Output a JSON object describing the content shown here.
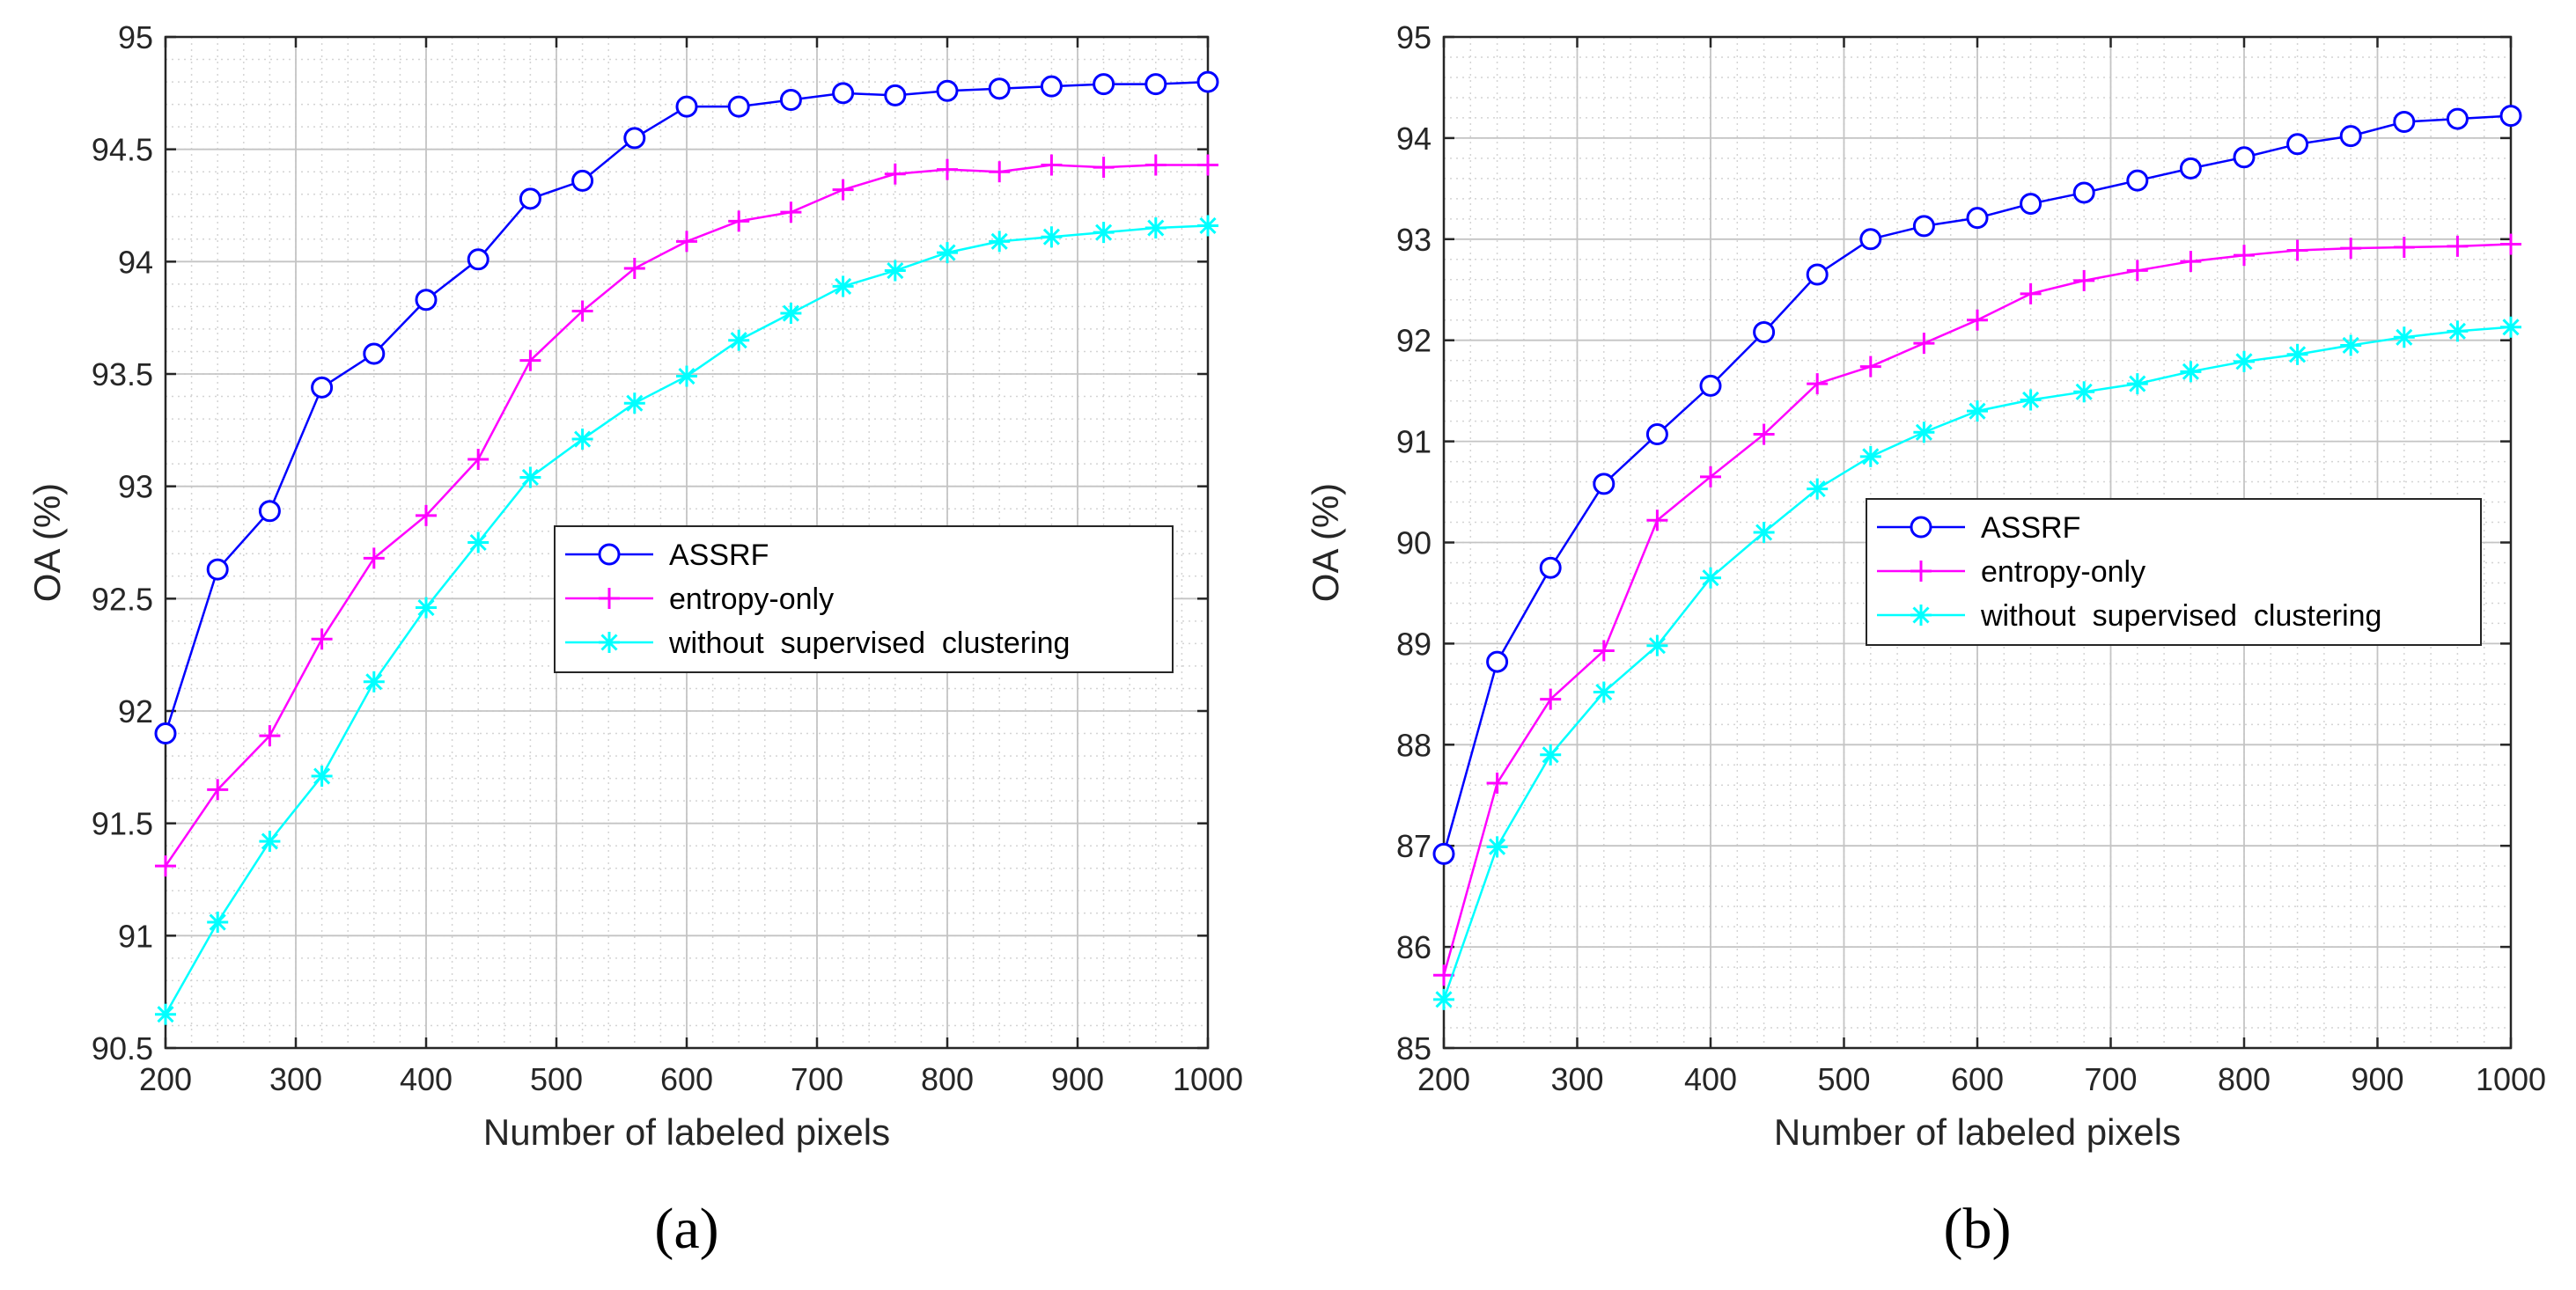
{
  "chart_data": [
    {
      "type": "line",
      "panel_label": "(a)",
      "xlabel": "Number of labeled pixels",
      "ylabel": "OA (%)",
      "xlim": [
        200,
        1000
      ],
      "ylim": [
        90.5,
        95
      ],
      "xticks": [
        200,
        300,
        400,
        500,
        600,
        700,
        800,
        900,
        1000
      ],
      "yticks": [
        90.5,
        91,
        91.5,
        92,
        92.5,
        93,
        93.5,
        94,
        94.5,
        95
      ],
      "grid": true,
      "legend_position": "middle-right",
      "x": [
        200,
        240,
        280,
        320,
        360,
        400,
        440,
        480,
        520,
        560,
        600,
        640,
        680,
        720,
        760,
        800,
        840,
        880,
        920,
        960,
        1000
      ],
      "series": [
        {
          "name": "ASSRF",
          "color": "#0000ff",
          "marker": "circle",
          "values": [
            91.9,
            92.63,
            92.89,
            93.44,
            93.59,
            93.83,
            94.01,
            94.28,
            94.36,
            94.55,
            94.69,
            94.69,
            94.72,
            94.75,
            94.74,
            94.76,
            94.77,
            94.78,
            94.79,
            94.79,
            94.8
          ]
        },
        {
          "name": "entropy-only",
          "color": "#ff00ff",
          "marker": "plus",
          "values": [
            91.31,
            91.65,
            91.89,
            92.32,
            92.68,
            92.87,
            93.12,
            93.56,
            93.78,
            93.97,
            94.09,
            94.18,
            94.22,
            94.32,
            94.39,
            94.41,
            94.4,
            94.43,
            94.42,
            94.43,
            94.43
          ]
        },
        {
          "name": "without  supervised  clustering",
          "color": "#00ffff",
          "marker": "asterisk",
          "values": [
            90.65,
            91.06,
            91.42,
            91.71,
            92.13,
            92.46,
            92.75,
            93.04,
            93.21,
            93.37,
            93.49,
            93.65,
            93.77,
            93.89,
            93.96,
            94.04,
            94.09,
            94.11,
            94.13,
            94.15,
            94.16
          ]
        }
      ]
    },
    {
      "type": "line",
      "panel_label": "(b)",
      "xlabel": "Number of labeled pixels",
      "ylabel": "OA (%)",
      "xlim": [
        200,
        1000
      ],
      "ylim": [
        85,
        95
      ],
      "xticks": [
        200,
        300,
        400,
        500,
        600,
        700,
        800,
        900,
        1000
      ],
      "yticks": [
        85,
        86,
        87,
        88,
        89,
        90,
        91,
        92,
        93,
        94,
        95
      ],
      "grid": true,
      "legend_position": "middle-right",
      "x": [
        200,
        240,
        280,
        320,
        360,
        400,
        440,
        480,
        520,
        560,
        600,
        640,
        680,
        720,
        760,
        800,
        840,
        880,
        920,
        960,
        1000
      ],
      "series": [
        {
          "name": "ASSRF",
          "color": "#0000ff",
          "marker": "circle",
          "values": [
            86.92,
            88.82,
            89.75,
            90.58,
            91.07,
            91.55,
            92.08,
            92.65,
            93.0,
            93.13,
            93.21,
            93.35,
            93.46,
            93.58,
            93.7,
            93.81,
            93.94,
            94.02,
            94.16,
            94.19,
            94.22
          ]
        },
        {
          "name": "entropy-only",
          "color": "#ff00ff",
          "marker": "plus",
          "values": [
            85.72,
            87.62,
            88.45,
            88.93,
            90.22,
            90.65,
            91.07,
            91.57,
            91.74,
            91.97,
            92.2,
            92.46,
            92.59,
            92.69,
            92.78,
            92.84,
            92.89,
            92.91,
            92.92,
            92.93,
            92.95
          ]
        },
        {
          "name": "without  supervised  clustering",
          "color": "#00ffff",
          "marker": "asterisk",
          "values": [
            85.48,
            86.99,
            87.9,
            88.52,
            88.98,
            89.65,
            90.1,
            90.53,
            90.85,
            91.09,
            91.3,
            91.41,
            91.49,
            91.57,
            91.69,
            91.79,
            91.86,
            91.95,
            92.03,
            92.09,
            92.13
          ]
        }
      ]
    }
  ]
}
